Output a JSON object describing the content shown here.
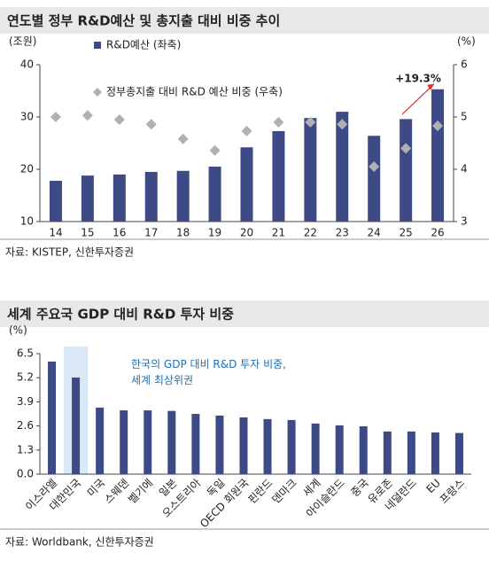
{
  "chart_data": [
    {
      "type": "bar",
      "title": "연도별 정부 R&D예산 및 총지출 대비 비중 추이",
      "source": "자료: KISTEP, 신한투자증권",
      "y_label": "(조원)",
      "y2_label": "(%)",
      "categories": [
        "14",
        "15",
        "16",
        "17",
        "18",
        "19",
        "20",
        "21",
        "22",
        "23",
        "24",
        "25",
        "26"
      ],
      "series": [
        {
          "name": "R&D예산 (좌축)",
          "color": "#3d4a86",
          "values": [
            17.8,
            18.8,
            19.0,
            19.5,
            19.7,
            20.5,
            24.2,
            27.3,
            29.8,
            31.0,
            26.4,
            29.6,
            35.3
          ]
        },
        {
          "name": "정부총지출 대비 R&D 예산 비중 (우축)",
          "color": "#b0b0b0",
          "axis": "y2",
          "marker": "diamond",
          "values": [
            5.0,
            5.03,
            4.95,
            4.86,
            4.58,
            4.36,
            4.73,
            4.9,
            4.9,
            4.86,
            4.05,
            4.4,
            4.83
          ]
        }
      ],
      "ylim": [
        10,
        40
      ],
      "yticks": [
        10,
        20,
        30,
        40
      ],
      "y2lim": [
        3,
        6
      ],
      "y2ticks": [
        3,
        4,
        5,
        6
      ],
      "annotation": "+19.3%"
    },
    {
      "type": "bar",
      "title": "세계 주요국 GDP 대비 R&D 투자 비중",
      "source": "자료: Worldbank, 신한투자증권",
      "y_label": "(%)",
      "categories": [
        "이스라엘",
        "대한민국",
        "미국",
        "스웨덴",
        "벨기에",
        "일본",
        "오스트리아",
        "독일",
        "OECD 회원국",
        "핀란드",
        "덴마크",
        "세계",
        "아이슬란드",
        "중국",
        "유로존",
        "네덜란드",
        "EU",
        "프랑스"
      ],
      "series": [
        {
          "color": "#3d4a86",
          "values": [
            6.07,
            5.21,
            3.59,
            3.44,
            3.44,
            3.41,
            3.25,
            3.16,
            3.06,
            2.97,
            2.92,
            2.73,
            2.63,
            2.58,
            2.3,
            2.3,
            2.25,
            2.22
          ]
        }
      ],
      "highlight": "대한민국",
      "ylim": [
        0,
        6.5
      ],
      "yticks": [
        {
          "value": 0,
          "label": "0.0"
        },
        1.3,
        2.6,
        3.9,
        5.2,
        6.5
      ],
      "annotation": "한국의 GDP 대비 R&D 투자 비중,\n세계 최상위권"
    }
  ]
}
